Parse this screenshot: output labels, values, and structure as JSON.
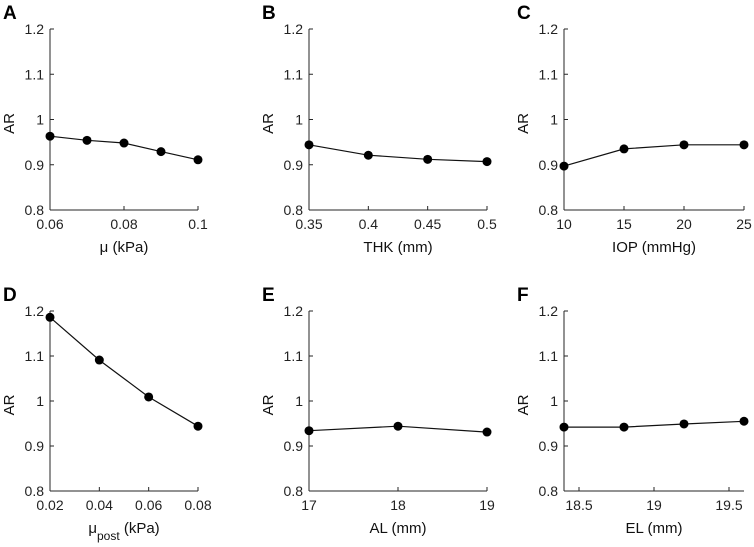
{
  "figure": {
    "background": "#ffffff",
    "line_color": "#111111",
    "marker_color": "#000000"
  },
  "chart_data": [
    {
      "panel": "A",
      "type": "line",
      "xlabel": "μ (kPa)",
      "xlabel_sub": "",
      "xlabel_suffix": "",
      "ylabel": "AR",
      "x": [
        0.06,
        0.07,
        0.08,
        0.09,
        0.1
      ],
      "y": [
        0.963,
        0.954,
        0.948,
        0.929,
        0.911
      ],
      "xlim": [
        0.06,
        0.1
      ],
      "ylim": [
        0.8,
        1.2
      ],
      "xticks": [
        0.06,
        0.08,
        0.1
      ],
      "xtick_labels": [
        "0.06",
        "0.08",
        "0.1"
      ],
      "yticks": [
        0.8,
        0.9,
        1.0,
        1.1,
        1.2
      ],
      "ytick_labels": [
        "0.8",
        "0.9",
        "1",
        "1.1",
        "1.2"
      ]
    },
    {
      "panel": "B",
      "type": "line",
      "xlabel": "THK (mm)",
      "xlabel_sub": "",
      "xlabel_suffix": "",
      "ylabel": "AR",
      "x": [
        0.35,
        0.4,
        0.45,
        0.5
      ],
      "y": [
        0.944,
        0.921,
        0.912,
        0.907
      ],
      "xlim": [
        0.35,
        0.5
      ],
      "ylim": [
        0.8,
        1.2
      ],
      "xticks": [
        0.35,
        0.4,
        0.45,
        0.5
      ],
      "xtick_labels": [
        "0.35",
        "0.4",
        "0.45",
        "0.5"
      ],
      "yticks": [
        0.8,
        0.9,
        1.0,
        1.1,
        1.2
      ],
      "ytick_labels": [
        "0.8",
        "0.9",
        "1",
        "1.1",
        "1.2"
      ]
    },
    {
      "panel": "C",
      "type": "line",
      "xlabel": "IOP (mmHg)",
      "xlabel_sub": "",
      "xlabel_suffix": "",
      "ylabel": "AR",
      "x": [
        10,
        15,
        20,
        25
      ],
      "y": [
        0.897,
        0.935,
        0.944,
        0.944
      ],
      "xlim": [
        10,
        25
      ],
      "ylim": [
        0.8,
        1.2
      ],
      "xticks": [
        10,
        15,
        20,
        25
      ],
      "xtick_labels": [
        "10",
        "15",
        "20",
        "25"
      ],
      "yticks": [
        0.8,
        0.9,
        1.0,
        1.1,
        1.2
      ],
      "ytick_labels": [
        "0.8",
        "0.9",
        "1",
        "1.1",
        "1.2"
      ]
    },
    {
      "panel": "D",
      "type": "line",
      "xlabel": "μ",
      "xlabel_sub": "post",
      "xlabel_suffix": " (kPa)",
      "ylabel": "AR",
      "x": [
        0.02,
        0.04,
        0.06,
        0.08
      ],
      "y": [
        1.186,
        1.091,
        1.009,
        0.944
      ],
      "xlim": [
        0.02,
        0.08
      ],
      "ylim": [
        0.8,
        1.2
      ],
      "xticks": [
        0.02,
        0.04,
        0.06,
        0.08
      ],
      "xtick_labels": [
        "0.02",
        "0.04",
        "0.06",
        "0.08"
      ],
      "yticks": [
        0.8,
        0.9,
        1.0,
        1.1,
        1.2
      ],
      "ytick_labels": [
        "0.8",
        "0.9",
        "1",
        "1.1",
        "1.2"
      ]
    },
    {
      "panel": "E",
      "type": "line",
      "xlabel": "AL (mm)",
      "xlabel_sub": "",
      "xlabel_suffix": "",
      "ylabel": "AR",
      "x": [
        17,
        18,
        19
      ],
      "y": [
        0.934,
        0.944,
        0.931
      ],
      "xlim": [
        17,
        19
      ],
      "ylim": [
        0.8,
        1.2
      ],
      "xticks": [
        17,
        18,
        19
      ],
      "xtick_labels": [
        "17",
        "18",
        "19"
      ],
      "yticks": [
        0.8,
        0.9,
        1.0,
        1.1,
        1.2
      ],
      "ytick_labels": [
        "0.8",
        "0.9",
        "1",
        "1.1",
        "1.2"
      ]
    },
    {
      "panel": "F",
      "type": "line",
      "xlabel": "EL (mm)",
      "xlabel_sub": "",
      "xlabel_suffix": "",
      "ylabel": "AR",
      "x": [
        18.4,
        18.8,
        19.2,
        19.6
      ],
      "y": [
        0.942,
        0.942,
        0.949,
        0.955
      ],
      "xlim": [
        18.4,
        19.6
      ],
      "ylim": [
        0.8,
        1.2
      ],
      "xticks": [
        18.5,
        19,
        19.5
      ],
      "xtick_labels": [
        "18.5",
        "19",
        "19.5"
      ],
      "yticks": [
        0.8,
        0.9,
        1.0,
        1.1,
        1.2
      ],
      "ytick_labels": [
        "0.8",
        "0.9",
        "1",
        "1.1",
        "1.2"
      ]
    }
  ]
}
